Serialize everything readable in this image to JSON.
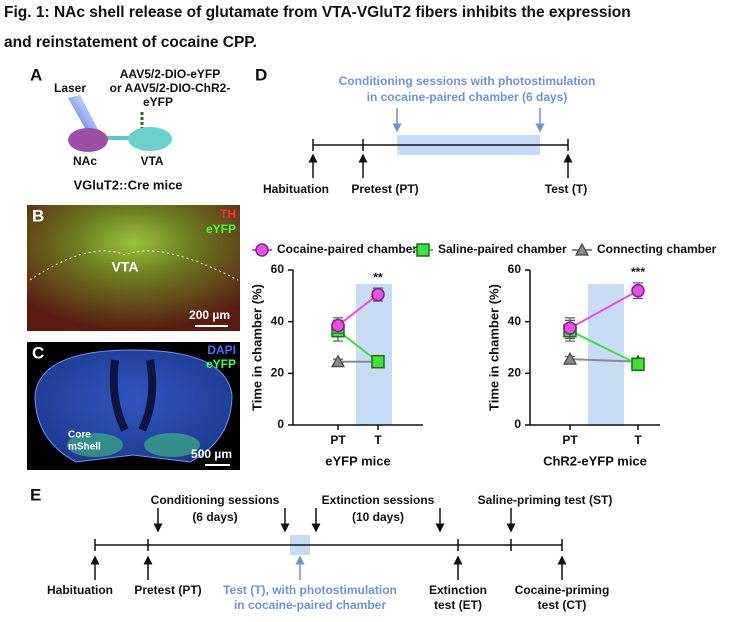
{
  "caption": [
    "Fig. 1: NAc shell release of glutamate from VTA-VGluT2 fibers inhibits the expression",
    "and reinstatement of cocaine CPP."
  ],
  "panel_a": {
    "label": "A",
    "laser": "Laser",
    "virus": [
      "AAV5/2-DIO-eYFP",
      "or AAV5/2-DIO-ChR2-",
      "eYFP"
    ],
    "regions": [
      "NAc",
      "VTA"
    ],
    "mouse": "VGluT2::Cre mice"
  },
  "panel_b": {
    "label": "B",
    "stains": [
      "TH",
      "eYFP"
    ],
    "region": "VTA",
    "scale": "200 µm"
  },
  "panel_c": {
    "label": "C",
    "stains": [
      "DAPI",
      "eYFP"
    ],
    "regions": [
      "Core",
      "mShell"
    ],
    "scale": "500 µm"
  },
  "panel_d": {
    "label": "D",
    "note": [
      "Conditioning sessions with photostimulation",
      "in cocaine-paired chamber (6 days)"
    ],
    "timeline": [
      "Habituation",
      "Pretest (PT)",
      "Test (T)"
    ]
  },
  "panel_e": {
    "label": "E",
    "top": [
      [
        "Conditioning sessions",
        "(6 days)"
      ],
      [
        "Extinction sessions",
        "(10 days)"
      ],
      [
        "Saline-priming test (ST)"
      ]
    ],
    "bottom": [
      [
        "Habituation"
      ],
      [
        "Pretest (PT)"
      ],
      [
        "Test (T), with photostimulation",
        "in cocaine-paired chamber"
      ],
      [
        "Extinction",
        "test (ET)"
      ],
      [
        "Cocaine-priming",
        "test (CT)"
      ]
    ]
  },
  "chart_data": [
    {
      "type": "line",
      "xlabel": "eYFP mice",
      "ylabel": "Time in chamber (%)",
      "categories": [
        "PT",
        "T"
      ],
      "ylim": [
        0,
        60
      ],
      "yticks": [
        0,
        20,
        40,
        60
      ],
      "annotation": "**",
      "series": [
        {
          "name": "Cocaine-paired chamber",
          "color": "#e650e6",
          "marker": "circle",
          "values": [
            38.5,
            50.5
          ],
          "errors": [
            3,
            2.5
          ]
        },
        {
          "name": "Saline-paired chamber",
          "color": "#3fe03f",
          "marker": "square",
          "values": [
            36.5,
            24.5
          ],
          "errors": [
            4,
            1
          ]
        },
        {
          "name": "Connecting chamber",
          "color": "#8a8a8a",
          "marker": "triangle",
          "values": [
            24.5,
            24.5
          ],
          "errors": [
            1,
            1
          ]
        }
      ]
    },
    {
      "type": "line",
      "xlabel": "ChR2-eYFP mice",
      "ylabel": "Time in chamber (%)",
      "categories": [
        "PT",
        "T"
      ],
      "ylim": [
        0,
        60
      ],
      "yticks": [
        0,
        20,
        40,
        60
      ],
      "annotation": "***",
      "series": [
        {
          "name": "Cocaine-paired chamber",
          "color": "#e650e6",
          "marker": "circle",
          "values": [
            37.5,
            52
          ],
          "errors": [
            4,
            3
          ]
        },
        {
          "name": "Saline-paired chamber",
          "color": "#3fe03f",
          "marker": "square",
          "values": [
            36.5,
            23.5
          ],
          "errors": [
            4,
            2
          ]
        },
        {
          "name": "Connecting chamber",
          "color": "#8a8a8a",
          "marker": "triangle",
          "values": [
            25.5,
            24.5
          ],
          "errors": [
            1,
            1
          ]
        }
      ]
    }
  ]
}
